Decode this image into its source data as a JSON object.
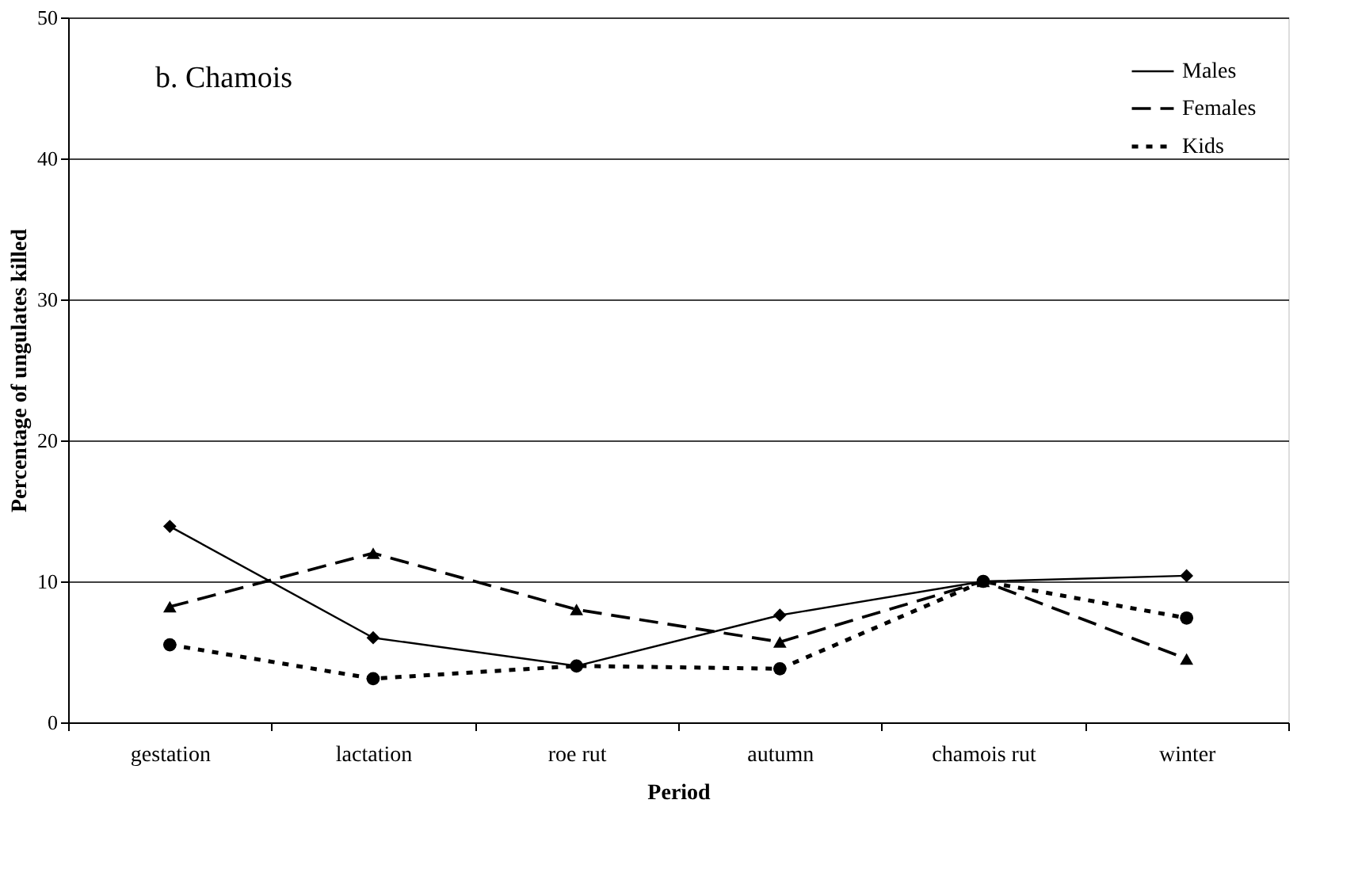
{
  "chart_data": {
    "type": "line",
    "title": "b. Chamois",
    "xlabel": "Period",
    "ylabel": "Percentage of ungulates killed",
    "categories": [
      "gestation",
      "lactation",
      "roe rut",
      "autumn",
      "chamois rut",
      "winter"
    ],
    "series": [
      {
        "name": "Males",
        "color": "#000000",
        "marker": "diamond",
        "line_style": "solid",
        "values": [
          13.9,
          6.0,
          4.0,
          7.6,
          10.0,
          10.4
        ]
      },
      {
        "name": "Females",
        "color": "#000000",
        "marker": "triangle",
        "line_style": "dashed",
        "values": [
          8.2,
          12.0,
          8.0,
          5.7,
          10.0,
          4.5
        ]
      },
      {
        "name": "Kids",
        "color": "#000000",
        "marker": "circle",
        "line_style": "dotted",
        "values": [
          5.5,
          3.1,
          4.0,
          3.8,
          10.0,
          7.4
        ]
      }
    ],
    "ylim": [
      0,
      50
    ],
    "yticks": [
      0,
      10,
      20,
      30,
      40,
      50
    ],
    "grid": "y",
    "legend": "top right"
  }
}
